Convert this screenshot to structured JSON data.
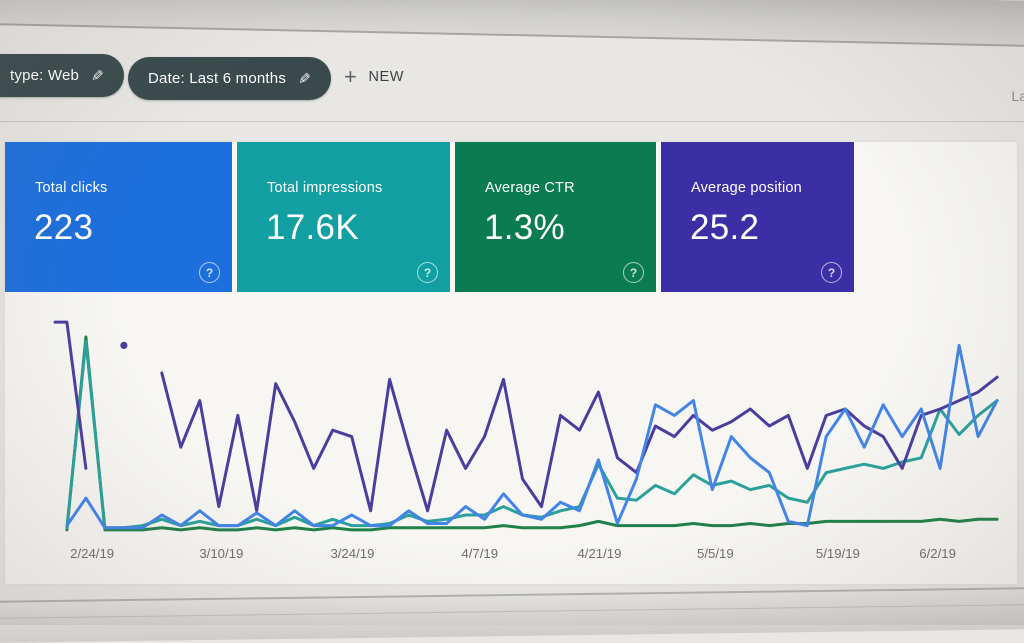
{
  "colors": {
    "chip_bg": "#3a4a4c",
    "card_clicks": "#1d6fdd",
    "card_impressions": "#119fa2",
    "card_ctr": "#0b7c52",
    "card_position": "#3c2fa5"
  },
  "icons": {
    "edit": "✎",
    "plus": "+",
    "help": "?"
  },
  "filter_bar": {
    "chips": [
      {
        "label": "type: Web",
        "icon": "edit-pencil"
      },
      {
        "label": "Date: Last 6 months",
        "icon": "edit-pencil"
      }
    ],
    "new_filter": {
      "label": "NEW",
      "icon": "plus"
    },
    "top_right_clipped_text": "La"
  },
  "summary_cards": [
    {
      "label": "Total clicks",
      "value": "223",
      "color": "#1d6fdd"
    },
    {
      "label": "Total impressions",
      "value": "17.6K",
      "color": "#119fa2"
    },
    {
      "label": "Average CTR",
      "value": "1.3%",
      "color": "#0b7c52"
    },
    {
      "label": "Average position",
      "value": "25.2",
      "color": "#3c2fa5"
    }
  ],
  "chart_data": {
    "type": "line",
    "x_tick_labels": [
      "2/24/19",
      "3/10/19",
      "3/24/19",
      "4/7/19",
      "4/21/19",
      "5/5/19",
      "5/19/19",
      "6/2/19"
    ],
    "x_axis": "date, daily points from 2/24/19 to ~6/5/19 (50 sampled points)",
    "value_scale": "relative height 0-100 of plot area (0 = baseline, 100 = top), estimated from pixels; y-axis unlabeled in screenshot",
    "grid": "off",
    "legend": "none (line colors match summary card colors)",
    "series": [
      {
        "name": "CTR",
        "color": "#20804a",
        "values": [
          1,
          92,
          1,
          1,
          1,
          2,
          1,
          2,
          1,
          1,
          2,
          1,
          2,
          1,
          2,
          1,
          1,
          2,
          2,
          2,
          2,
          2,
          2,
          3,
          2,
          2,
          2,
          3,
          5,
          3,
          3,
          3,
          3,
          4,
          3,
          3,
          4,
          3,
          4,
          4,
          5,
          5,
          5,
          5,
          5,
          5,
          6,
          5,
          6,
          6
        ]
      },
      {
        "name": "Impressions",
        "color": "#2aa19b",
        "values": [
          2,
          90,
          2,
          2,
          3,
          6,
          3,
          5,
          3,
          3,
          6,
          3,
          7,
          3,
          6,
          3,
          3,
          4,
          8,
          5,
          6,
          8,
          8,
          12,
          8,
          7,
          10,
          12,
          32,
          16,
          15,
          22,
          18,
          27,
          22,
          24,
          20,
          22,
          16,
          14,
          28,
          30,
          32,
          30,
          33,
          35,
          58,
          46,
          55,
          62
        ]
      },
      {
        "name": "Position",
        "color": "#4a3d9e",
        "start_hook": true,
        "values": [
          99,
          30,
          null,
          88,
          null,
          75,
          40,
          62,
          12,
          55,
          10,
          70,
          52,
          30,
          48,
          45,
          10,
          72,
          40,
          10,
          48,
          30,
          45,
          72,
          25,
          12,
          55,
          48,
          66,
          35,
          28,
          50,
          45,
          55,
          48,
          52,
          58,
          50,
          55,
          30,
          55,
          58,
          50,
          45,
          30,
          55,
          58,
          62,
          66,
          73
        ]
      },
      {
        "name": "Clicks",
        "color": "#4284e8",
        "values": [
          3,
          16,
          2,
          2,
          2,
          8,
          3,
          10,
          3,
          3,
          9,
          3,
          10,
          3,
          3,
          8,
          3,
          3,
          10,
          4,
          4,
          12,
          6,
          18,
          8,
          6,
          14,
          10,
          34,
          4,
          25,
          60,
          55,
          62,
          20,
          45,
          35,
          28,
          5,
          3,
          45,
          58,
          40,
          60,
          45,
          58,
          30,
          88,
          45,
          62
        ]
      }
    ]
  }
}
